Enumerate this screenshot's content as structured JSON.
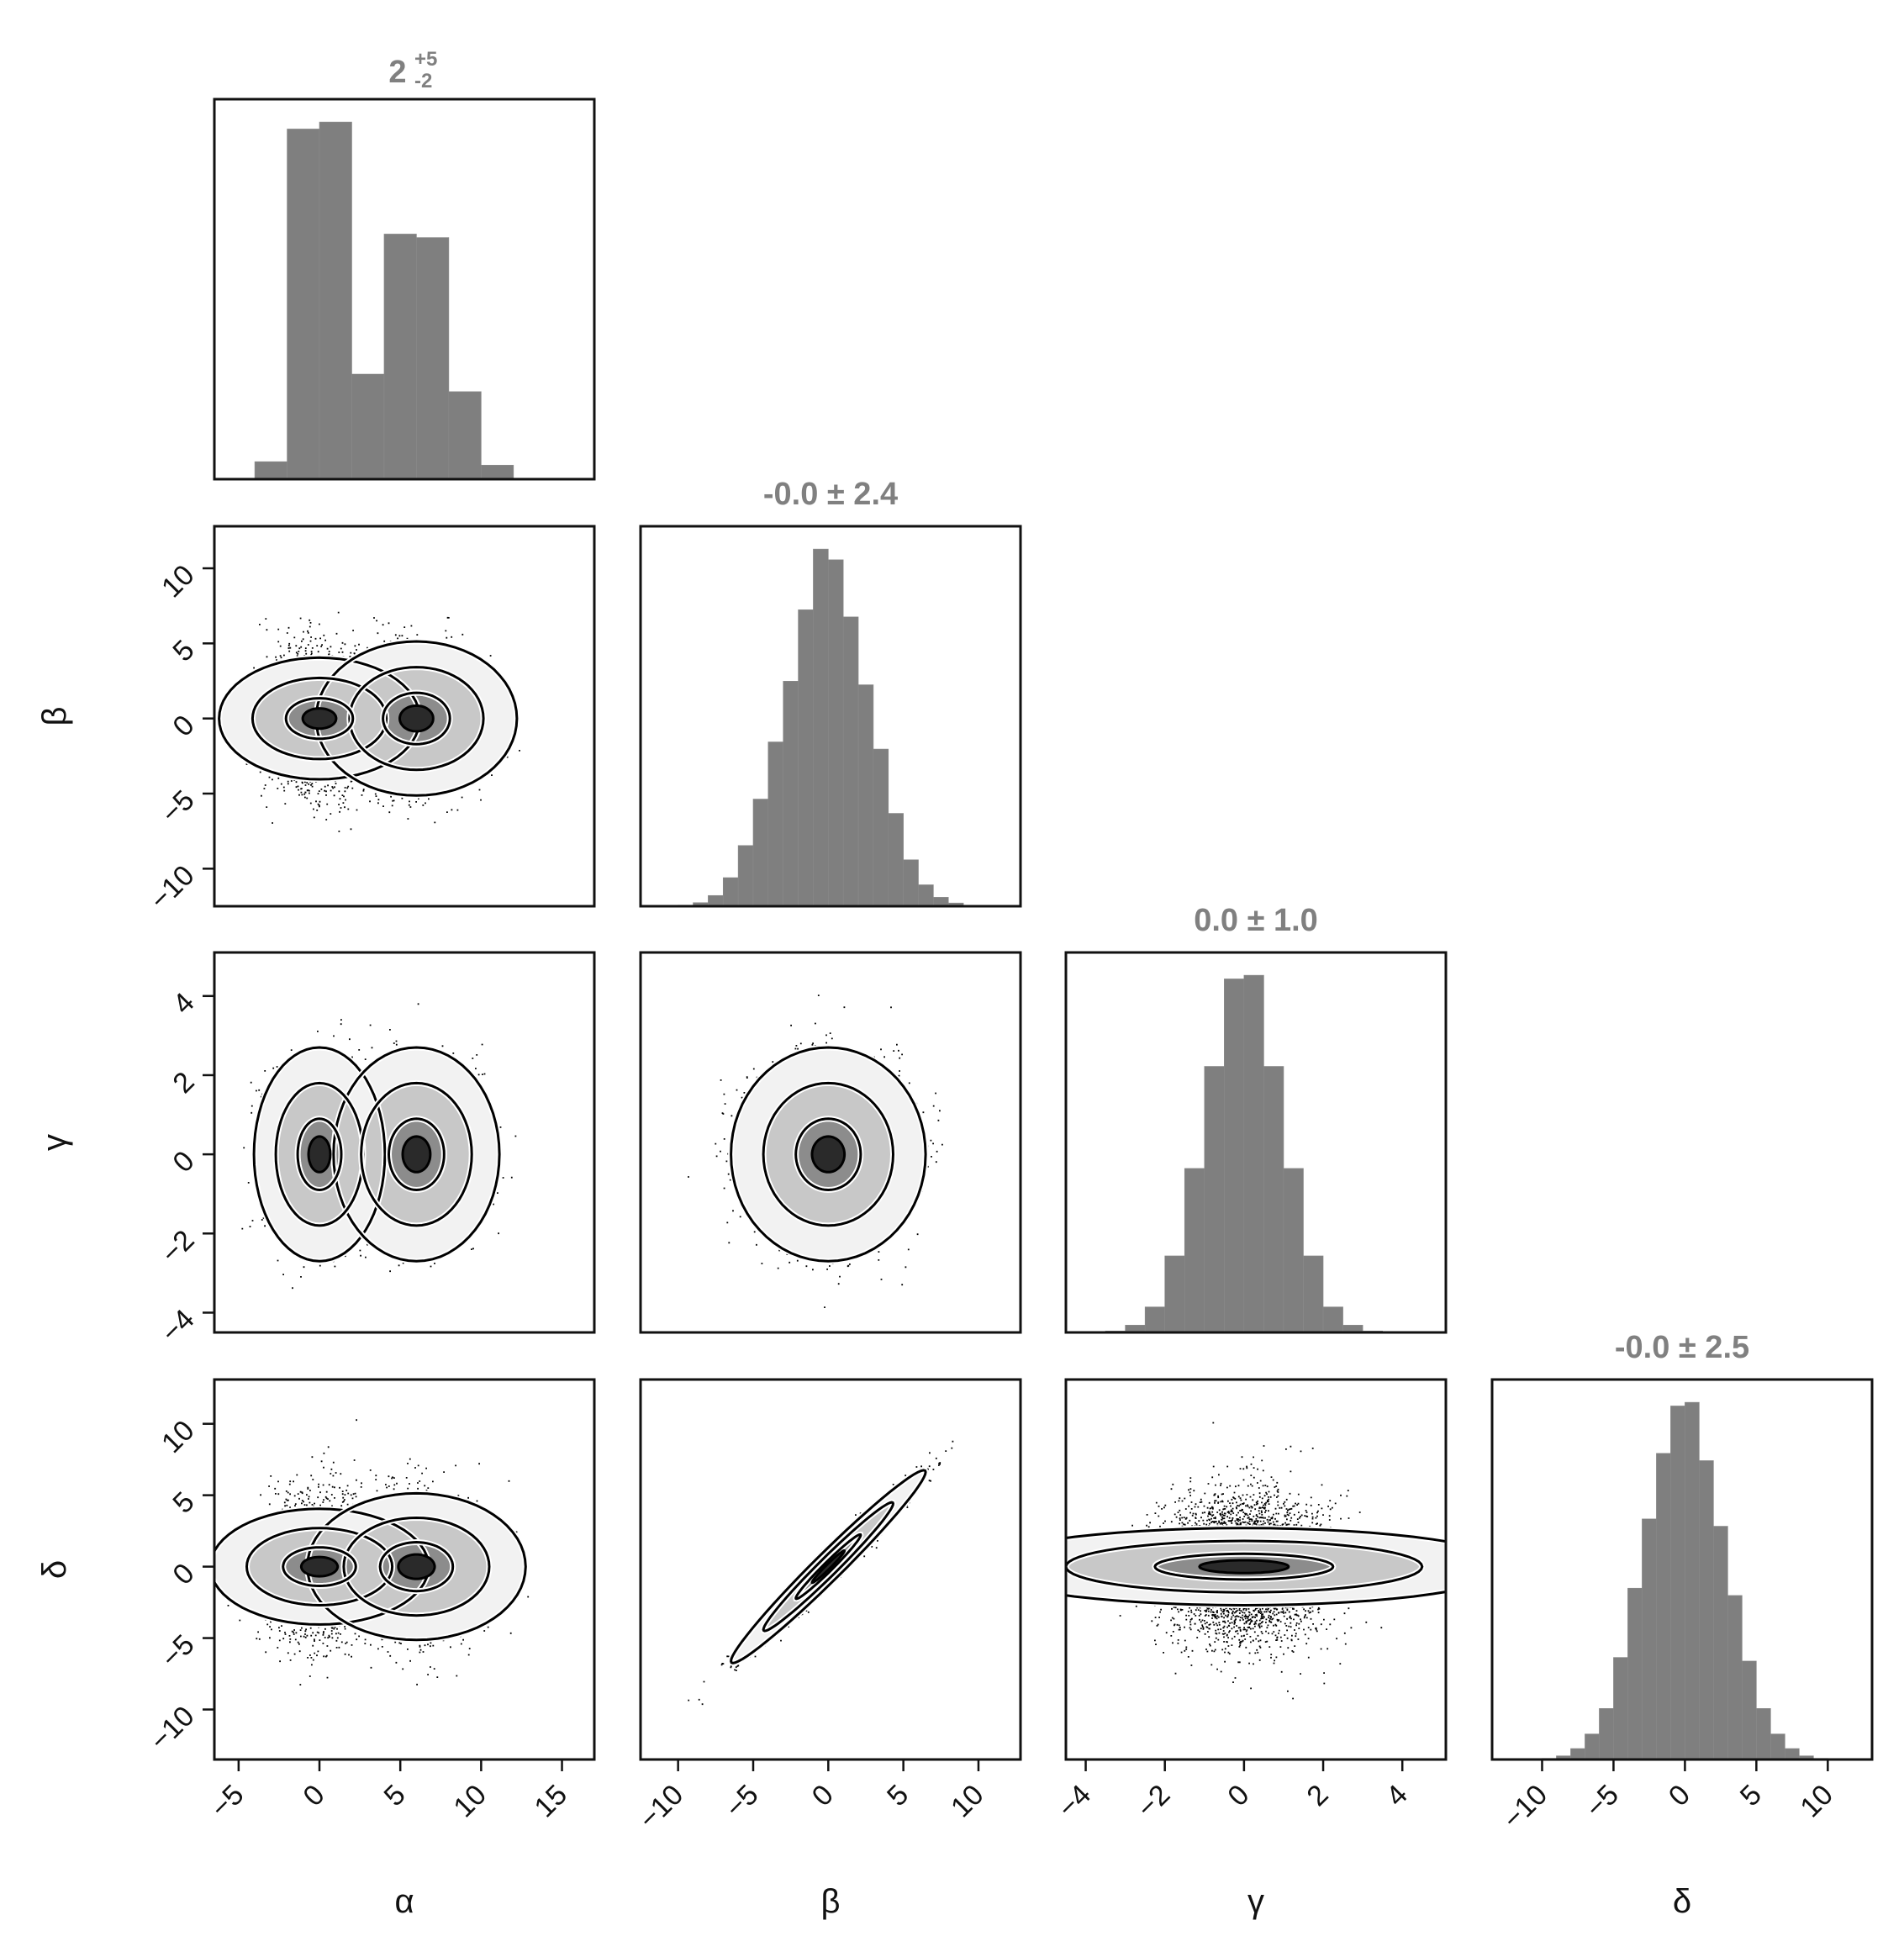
{
  "chart_data": {
    "type": "corner",
    "description_of_layout": "lower-triangular matrix of panels; diagonal = 1D histograms, below diagonal = 2D density (hexbin + contours + scatter)",
    "colors": {
      "histogram": "#7f7f7f",
      "title": "#808080",
      "axis": "#111111",
      "scatter": "#000000",
      "contour": "#000000"
    },
    "variables": [
      {
        "name": "α",
        "label": "α",
        "range": [
          -6.5,
          17
        ],
        "ticks": [
          -5,
          0,
          5,
          10,
          15
        ],
        "tick_labels": [
          "−5",
          "0",
          "5",
          "10",
          "15"
        ]
      },
      {
        "name": "β",
        "label": "β",
        "range": [
          -12.5,
          12.8
        ],
        "ticks": [
          -10,
          -5,
          0,
          5,
          10
        ],
        "tick_labels": [
          "−10",
          "−5",
          "0",
          "5",
          "10"
        ]
      },
      {
        "name": "γ",
        "label": "γ",
        "range": [
          -4.5,
          5.1
        ],
        "ticks": [
          -4,
          -2,
          0,
          2,
          4
        ],
        "tick_labels": [
          "−4",
          "−2",
          "0",
          "2",
          "4"
        ]
      },
      {
        "name": "δ",
        "label": "δ",
        "range": [
          -13.5,
          13.1
        ],
        "ticks": [
          -10,
          -5,
          0,
          5,
          10
        ],
        "tick_labels": [
          "−10",
          "−5",
          "0",
          "5",
          "10"
        ]
      }
    ],
    "diagonal": [
      {
        "variable": "α",
        "title_main": "2",
        "title_sup": "+5",
        "title_sub": "-2",
        "bin_edges": [
          -4,
          -2,
          0,
          2,
          4,
          6,
          8,
          10,
          12
        ],
        "counts": [
          0.05,
          1.0,
          1.02,
          0.3,
          0.7,
          0.69,
          0.25,
          0.04
        ]
      },
      {
        "variable": "β",
        "title": "-0.0 ± 2.4",
        "bin_edges": [
          -10,
          -9,
          -8,
          -7,
          -6,
          -5,
          -4,
          -3,
          -2,
          -1,
          0,
          1,
          2,
          3,
          4,
          5,
          6,
          7,
          8,
          9,
          10
        ],
        "counts": [
          0.003,
          0.01,
          0.03,
          0.08,
          0.17,
          0.3,
          0.46,
          0.63,
          0.83,
          1.0,
          0.97,
          0.81,
          0.62,
          0.44,
          0.26,
          0.13,
          0.06,
          0.025,
          0.009,
          0.002
        ]
      },
      {
        "variable": "γ",
        "title": "0.0 ± 1.0",
        "bin_edges": [
          -3.5,
          -3.0,
          -2.5,
          -2.0,
          -1.5,
          -1.0,
          -0.5,
          0.0,
          0.5,
          1.0,
          1.5,
          2.0,
          2.5,
          3.0,
          3.5
        ],
        "counts": [
          0.004,
          0.02,
          0.07,
          0.21,
          0.45,
          0.73,
          0.97,
          0.98,
          0.73,
          0.45,
          0.21,
          0.07,
          0.02,
          0.004
        ]
      },
      {
        "variable": "δ",
        "title": "-0.0 ± 2.5",
        "bin_edges": [
          -10,
          -9,
          -8,
          -7,
          -6,
          -5,
          -4,
          -3,
          -2,
          -1,
          0,
          1,
          2,
          3,
          4,
          5,
          6,
          7,
          8,
          9,
          10
        ],
        "counts": [
          0.003,
          0.01,
          0.03,
          0.07,
          0.14,
          0.28,
          0.47,
          0.66,
          0.84,
          0.97,
          0.98,
          0.82,
          0.64,
          0.45,
          0.27,
          0.14,
          0.07,
          0.03,
          0.01,
          0.003
        ]
      }
    ],
    "off_diagonal": [
      {
        "x": "α",
        "y": "β",
        "structure": "bimodal",
        "modes": [
          {
            "center": [
              0,
              0
            ],
            "sd": [
              1.5,
              2.3
            ],
            "weight": 0.55
          },
          {
            "center": [
              6,
              0
            ],
            "sd": [
              1.9,
              2.3
            ],
            "weight": 0.45
          }
        ],
        "rho": 0
      },
      {
        "x": "α",
        "y": "γ",
        "structure": "bimodal",
        "modes": [
          {
            "center": [
              0,
              0
            ],
            "sd": [
              1.5,
              1.0
            ],
            "weight": 0.55
          },
          {
            "center": [
              6,
              0
            ],
            "sd": [
              1.9,
              1.0
            ],
            "weight": 0.45
          }
        ],
        "rho": 0
      },
      {
        "x": "β",
        "y": "γ",
        "structure": "gaussian",
        "center": [
          0,
          0
        ],
        "sd": [
          2.4,
          1.0
        ],
        "rho": 0
      },
      {
        "x": "α",
        "y": "δ",
        "structure": "bimodal",
        "modes": [
          {
            "center": [
              0,
              0
            ],
            "sd": [
              1.5,
              2.5
            ],
            "weight": 0.55
          },
          {
            "center": [
              6,
              0
            ],
            "sd": [
              1.9,
              2.5
            ],
            "weight": 0.45
          }
        ],
        "rho": 0
      },
      {
        "x": "β",
        "y": "δ",
        "structure": "gaussian",
        "center": [
          0,
          0
        ],
        "sd": [
          2.4,
          2.5
        ],
        "rho": 0.98
      },
      {
        "x": "γ",
        "y": "δ",
        "structure": "gaussian",
        "center": [
          0,
          0
        ],
        "sd": [
          1.0,
          2.5
        ],
        "rho": 0
      }
    ],
    "contour_levels_sigma": [
      1,
      2,
      3
    ],
    "grid": false,
    "legend": "none"
  }
}
